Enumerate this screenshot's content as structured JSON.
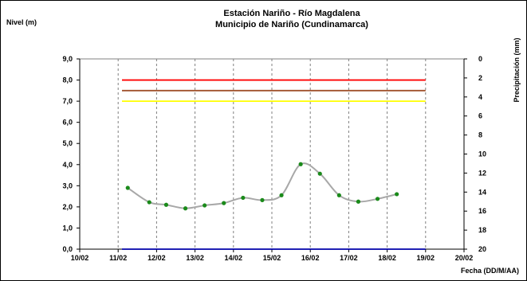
{
  "chart_data": {
    "type": "line",
    "title": "Estación Nariño  - Río Magdalena",
    "subtitle": "Municipio de Nariño (Cundinamarca)",
    "ylabel": "Nivel (m)",
    "y2label": "Precipitación (mm)",
    "xlabel": "Fecha (DD/M/AA)",
    "xlim": [
      0,
      10
    ],
    "ylim": [
      0,
      9
    ],
    "y2lim": [
      0,
      20
    ],
    "y2_inverted": true,
    "x_ticks": [
      "10/02",
      "11/02",
      "12/02",
      "13/02",
      "14/02",
      "15/02",
      "16/02",
      "17/02",
      "18/02",
      "19/02",
      "20/02"
    ],
    "y_ticks": [
      "0,0",
      "1,0",
      "2,0",
      "3,0",
      "4,0",
      "5,0",
      "6,0",
      "7,0",
      "8,0",
      "9,0"
    ],
    "y2_ticks": [
      "0",
      "2",
      "4",
      "6",
      "8",
      "10",
      "12",
      "14",
      "16",
      "18",
      "20"
    ],
    "grid": "vertical",
    "series": [
      {
        "color": "#a8a8a8",
        "marker_color": "#1a8a1a",
        "smooth": true,
        "x": [
          1.25,
          1.81,
          2.25,
          2.75,
          3.25,
          3.75,
          4.25,
          4.75,
          5.25,
          5.75,
          6.25,
          6.75,
          7.25,
          7.75,
          8.25
        ],
        "values": [
          2.9,
          2.22,
          2.1,
          1.93,
          2.07,
          2.18,
          2.43,
          2.32,
          2.55,
          4.02,
          3.57,
          2.55,
          2.25,
          2.38,
          2.6
        ]
      },
      {
        "color": "#ff0000",
        "x": [
          1.1,
          9.0
        ],
        "values": [
          8.0,
          8.0
        ]
      },
      {
        "color": "#a0522d",
        "x": [
          1.1,
          9.0
        ],
        "values": [
          7.5,
          7.5
        ]
      },
      {
        "color": "#ffff00",
        "x": [
          1.1,
          9.0
        ],
        "values": [
          7.0,
          7.0
        ]
      },
      {
        "color": "#0000aa",
        "x": [
          1.1,
          9.0
        ],
        "values": [
          0.0,
          0.0
        ]
      }
    ]
  }
}
